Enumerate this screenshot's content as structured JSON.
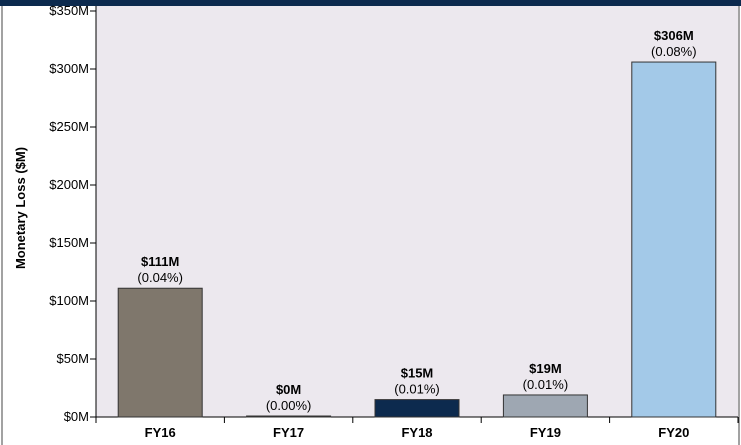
{
  "chart_data": {
    "type": "bar",
    "categories": [
      "FY16",
      "FY17",
      "FY18",
      "FY19",
      "FY20"
    ],
    "values": [
      111,
      0,
      15,
      19,
      306
    ],
    "value_labels": [
      "$111M",
      "$0M",
      "$15M",
      "$19M",
      "$306M"
    ],
    "percent_labels": [
      "(0.04%)",
      "(0.00%)",
      "(0.01%)",
      "(0.01%)",
      "(0.08%)"
    ],
    "bar_colors": [
      "#7f776c",
      "#c9c7c2",
      "#0c2a4e",
      "#9ea7b2",
      "#a3c9e8"
    ],
    "ylabel": "Monetary Loss ($M)",
    "ylim": [
      0,
      350
    ],
    "yticks": [
      0,
      50,
      100,
      150,
      200,
      250,
      300,
      350
    ],
    "ytick_labels": [
      "$0M",
      "$50M",
      "$100M",
      "$150M",
      "$200M",
      "$250M",
      "$300M",
      "$350M"
    ],
    "plot_background": "#ece8ee",
    "top_band_color": "#0c2a4e"
  }
}
